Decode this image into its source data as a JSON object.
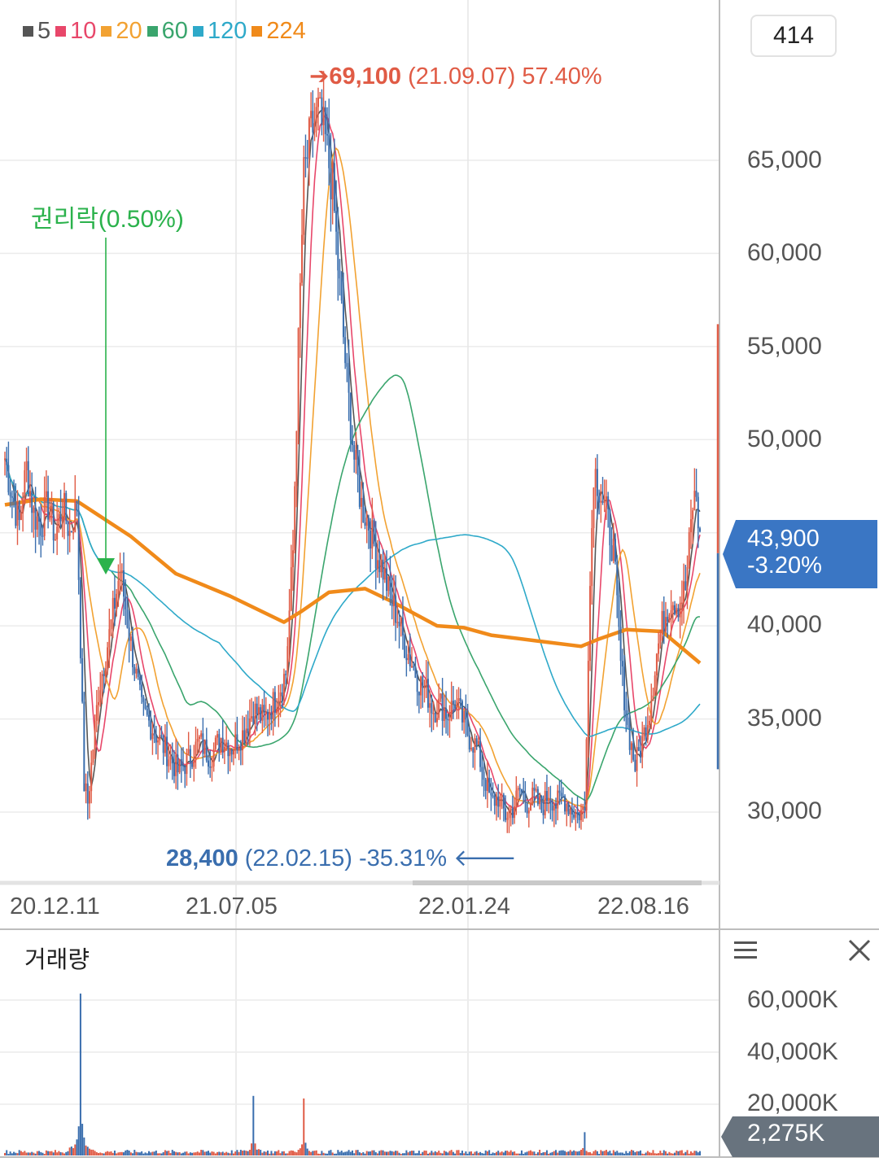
{
  "legend": [
    {
      "label": "5",
      "color": "#555555"
    },
    {
      "label": "10",
      "color": "#e8476a"
    },
    {
      "label": "20",
      "color": "#f2a232"
    },
    {
      "label": "60",
      "color": "#3aa56d"
    },
    {
      "label": "120",
      "color": "#2ea9c9"
    },
    {
      "label": "224",
      "color": "#f08a1a"
    }
  ],
  "candle_count": "414",
  "annotations": {
    "high_price": "69,100",
    "high_detail": "(21.09.07) 57.40%",
    "low_price": "28,400",
    "low_detail": "(22.02.15) -35.31%",
    "ex_rights": "권리락(0.50%)"
  },
  "current": {
    "price": "43,900",
    "change": "-3.20%",
    "volume": "2,275K"
  },
  "volume_panel": {
    "title": "거래량"
  },
  "colors": {
    "up": "#e05b45",
    "down": "#3a6eae",
    "current_box": "#3a76c4",
    "volume_box": "#68737e",
    "ex_rights": "#2bb24c"
  },
  "chart_data": {
    "type": "candlestick",
    "x_tick_labels": [
      "20.12.11",
      "21.07.05",
      "22.01.24",
      "22.08.16"
    ],
    "y_ticks": [
      30000,
      35000,
      40000,
      45000,
      50000,
      55000,
      60000,
      65000
    ],
    "y_tick_labels": [
      "30,000",
      "35,000",
      "40,000",
      "50,000",
      "55,000",
      "60,000",
      "65,000"
    ],
    "ylim": [
      26000,
      71000
    ],
    "close_path": [
      [
        0,
        49000
      ],
      [
        4,
        47000
      ],
      [
        8,
        45500
      ],
      [
        12,
        48500
      ],
      [
        16,
        46000
      ],
      [
        20,
        45500
      ],
      [
        24,
        46500
      ],
      [
        28,
        44800
      ],
      [
        32,
        46500
      ],
      [
        36,
        45000
      ],
      [
        40,
        46500
      ],
      [
        44,
        31500
      ],
      [
        46,
        30500
      ],
      [
        52,
        36500
      ],
      [
        58,
        39500
      ],
      [
        64,
        43000
      ],
      [
        70,
        39000
      ],
      [
        76,
        35500
      ],
      [
        82,
        34500
      ],
      [
        90,
        33200
      ],
      [
        96,
        32200
      ],
      [
        102,
        32800
      ],
      [
        108,
        33800
      ],
      [
        114,
        33000
      ],
      [
        120,
        34000
      ],
      [
        126,
        33500
      ],
      [
        132,
        34200
      ],
      [
        138,
        35500
      ],
      [
        144,
        35000
      ],
      [
        150,
        36000
      ],
      [
        156,
        37500
      ],
      [
        160,
        44000
      ],
      [
        163,
        55000
      ],
      [
        166,
        64000
      ],
      [
        170,
        66500
      ],
      [
        174,
        67500
      ],
      [
        178,
        66000
      ],
      [
        182,
        63500
      ],
      [
        186,
        58000
      ],
      [
        190,
        53000
      ],
      [
        194,
        49000
      ],
      [
        198,
        46500
      ],
      [
        202,
        45500
      ],
      [
        206,
        44000
      ],
      [
        210,
        43000
      ],
      [
        214,
        41500
      ],
      [
        218,
        40500
      ],
      [
        222,
        39000
      ],
      [
        226,
        38000
      ],
      [
        230,
        37000
      ],
      [
        234,
        36500
      ],
      [
        238,
        35500
      ],
      [
        242,
        35800
      ],
      [
        246,
        35200
      ],
      [
        250,
        36000
      ],
      [
        254,
        35000
      ],
      [
        258,
        34000
      ],
      [
        262,
        33500
      ],
      [
        266,
        32000
      ],
      [
        270,
        30500
      ],
      [
        274,
        30800
      ],
      [
        278,
        29800
      ],
      [
        282,
        30200
      ],
      [
        286,
        31200
      ],
      [
        290,
        30500
      ],
      [
        294,
        30800
      ],
      [
        298,
        30200
      ],
      [
        302,
        31000
      ],
      [
        306,
        30400
      ],
      [
        310,
        30800
      ],
      [
        314,
        30200
      ],
      [
        318,
        29900
      ],
      [
        322,
        30100
      ],
      [
        324,
        39000
      ],
      [
        327,
        48500
      ],
      [
        330,
        47500
      ],
      [
        334,
        46000
      ],
      [
        338,
        44000
      ],
      [
        342,
        38000
      ],
      [
        346,
        34500
      ],
      [
        350,
        32500
      ],
      [
        354,
        33800
      ],
      [
        358,
        35500
      ],
      [
        362,
        38500
      ],
      [
        366,
        40500
      ],
      [
        370,
        41500
      ],
      [
        374,
        41200
      ],
      [
        378,
        42000
      ],
      [
        382,
        46500
      ],
      [
        384,
        47000
      ],
      [
        386,
        44500
      ]
    ],
    "volume_axis_labels": [
      "60,000K",
      "40,000K",
      "20,000K"
    ],
    "volume_ylim": [
      0,
      65000
    ],
    "volume_spikes": [
      [
        42,
        62500
      ],
      [
        138,
        23000
      ],
      [
        166,
        22000
      ],
      [
        322,
        9000
      ]
    ],
    "ma224": [
      [
        0,
        46500
      ],
      [
        20,
        46800
      ],
      [
        40,
        46700
      ],
      [
        70,
        44800
      ],
      [
        95,
        42800
      ],
      [
        125,
        41600
      ],
      [
        155,
        40200
      ],
      [
        165,
        40800
      ],
      [
        180,
        41800
      ],
      [
        200,
        42000
      ],
      [
        215,
        41300
      ],
      [
        240,
        40000
      ],
      [
        255,
        39900
      ],
      [
        270,
        39500
      ],
      [
        295,
        39200
      ],
      [
        320,
        38900
      ],
      [
        330,
        39300
      ],
      [
        345,
        39800
      ],
      [
        365,
        39700
      ],
      [
        386,
        38000
      ]
    ]
  }
}
